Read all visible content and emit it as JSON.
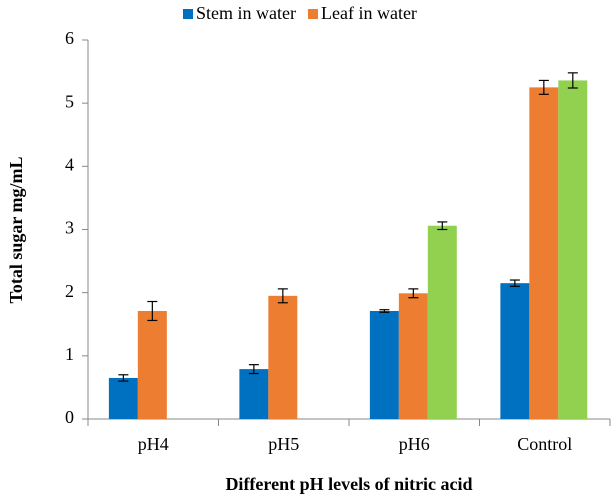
{
  "chart_data": {
    "type": "bar",
    "x_label": "Different pH levels of nitric acid",
    "y_label": "Total sugar mg/mL",
    "categories": [
      "pH4",
      "pH5",
      "pH6",
      "Control"
    ],
    "series": [
      {
        "name": "Stem in water",
        "color": "#0070c0",
        "values": [
          0.65,
          0.79,
          1.71,
          2.15
        ],
        "errors": [
          0.05,
          0.07,
          0.02,
          0.05
        ]
      },
      {
        "name": "Leaf in water",
        "color": "#ed7d31",
        "values": [
          1.71,
          1.95,
          1.99,
          5.25
        ],
        "errors": [
          0.15,
          0.11,
          0.07,
          0.11
        ]
      },
      {
        "color": "#92d050",
        "values": [
          null,
          null,
          3.06,
          5.36
        ],
        "errors": [
          null,
          null,
          0.06,
          0.12
        ]
      }
    ],
    "ylim": [
      0,
      6
    ],
    "yticks": [
      0,
      1,
      2,
      3,
      4,
      5,
      6
    ],
    "legend": "top"
  }
}
